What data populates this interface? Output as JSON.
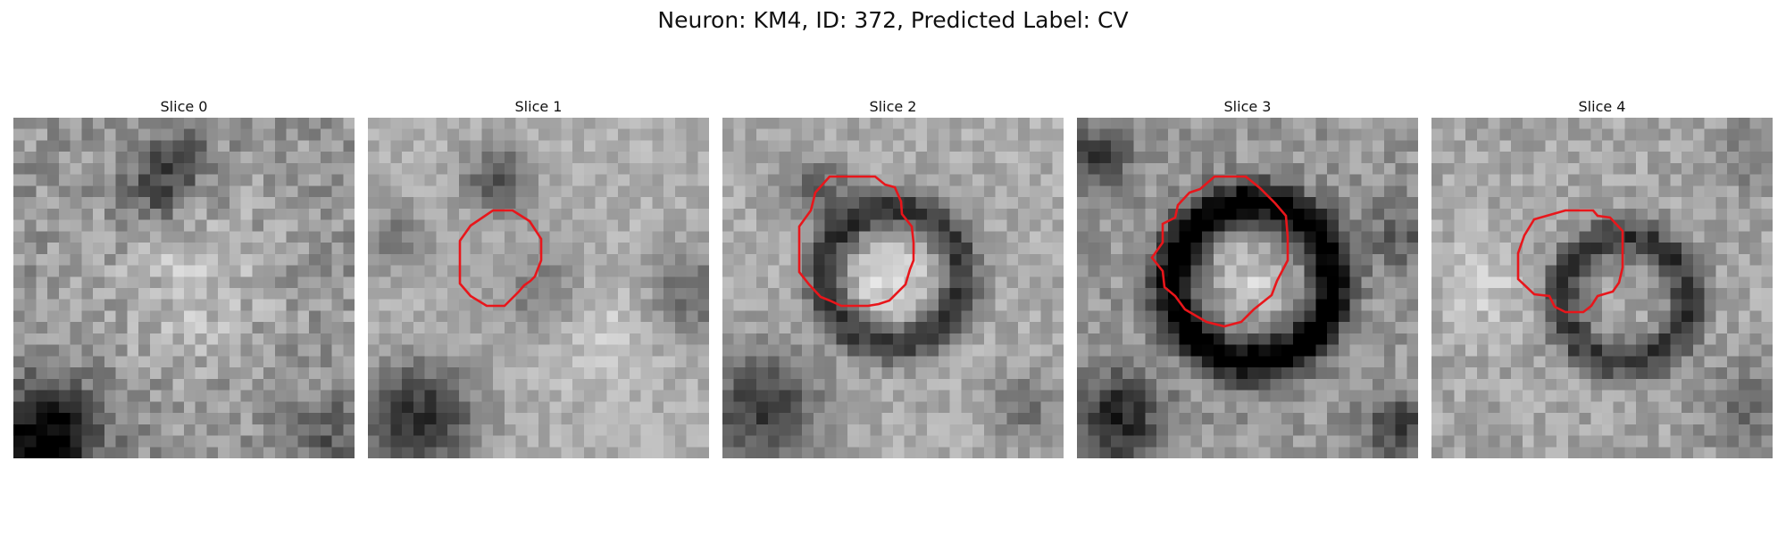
{
  "figure": {
    "title": "Neuron: KM4, ID: 372, Predicted Label: CV"
  },
  "panels": [
    {
      "title": "Slice 0",
      "has_contour": false
    },
    {
      "title": "Slice 1",
      "has_contour": true
    },
    {
      "title": "Slice 2",
      "has_contour": true
    },
    {
      "title": "Slice 3",
      "has_contour": true
    },
    {
      "title": "Slice 4",
      "has_contour": true
    }
  ],
  "colors": {
    "contour": "#e8161b"
  }
}
